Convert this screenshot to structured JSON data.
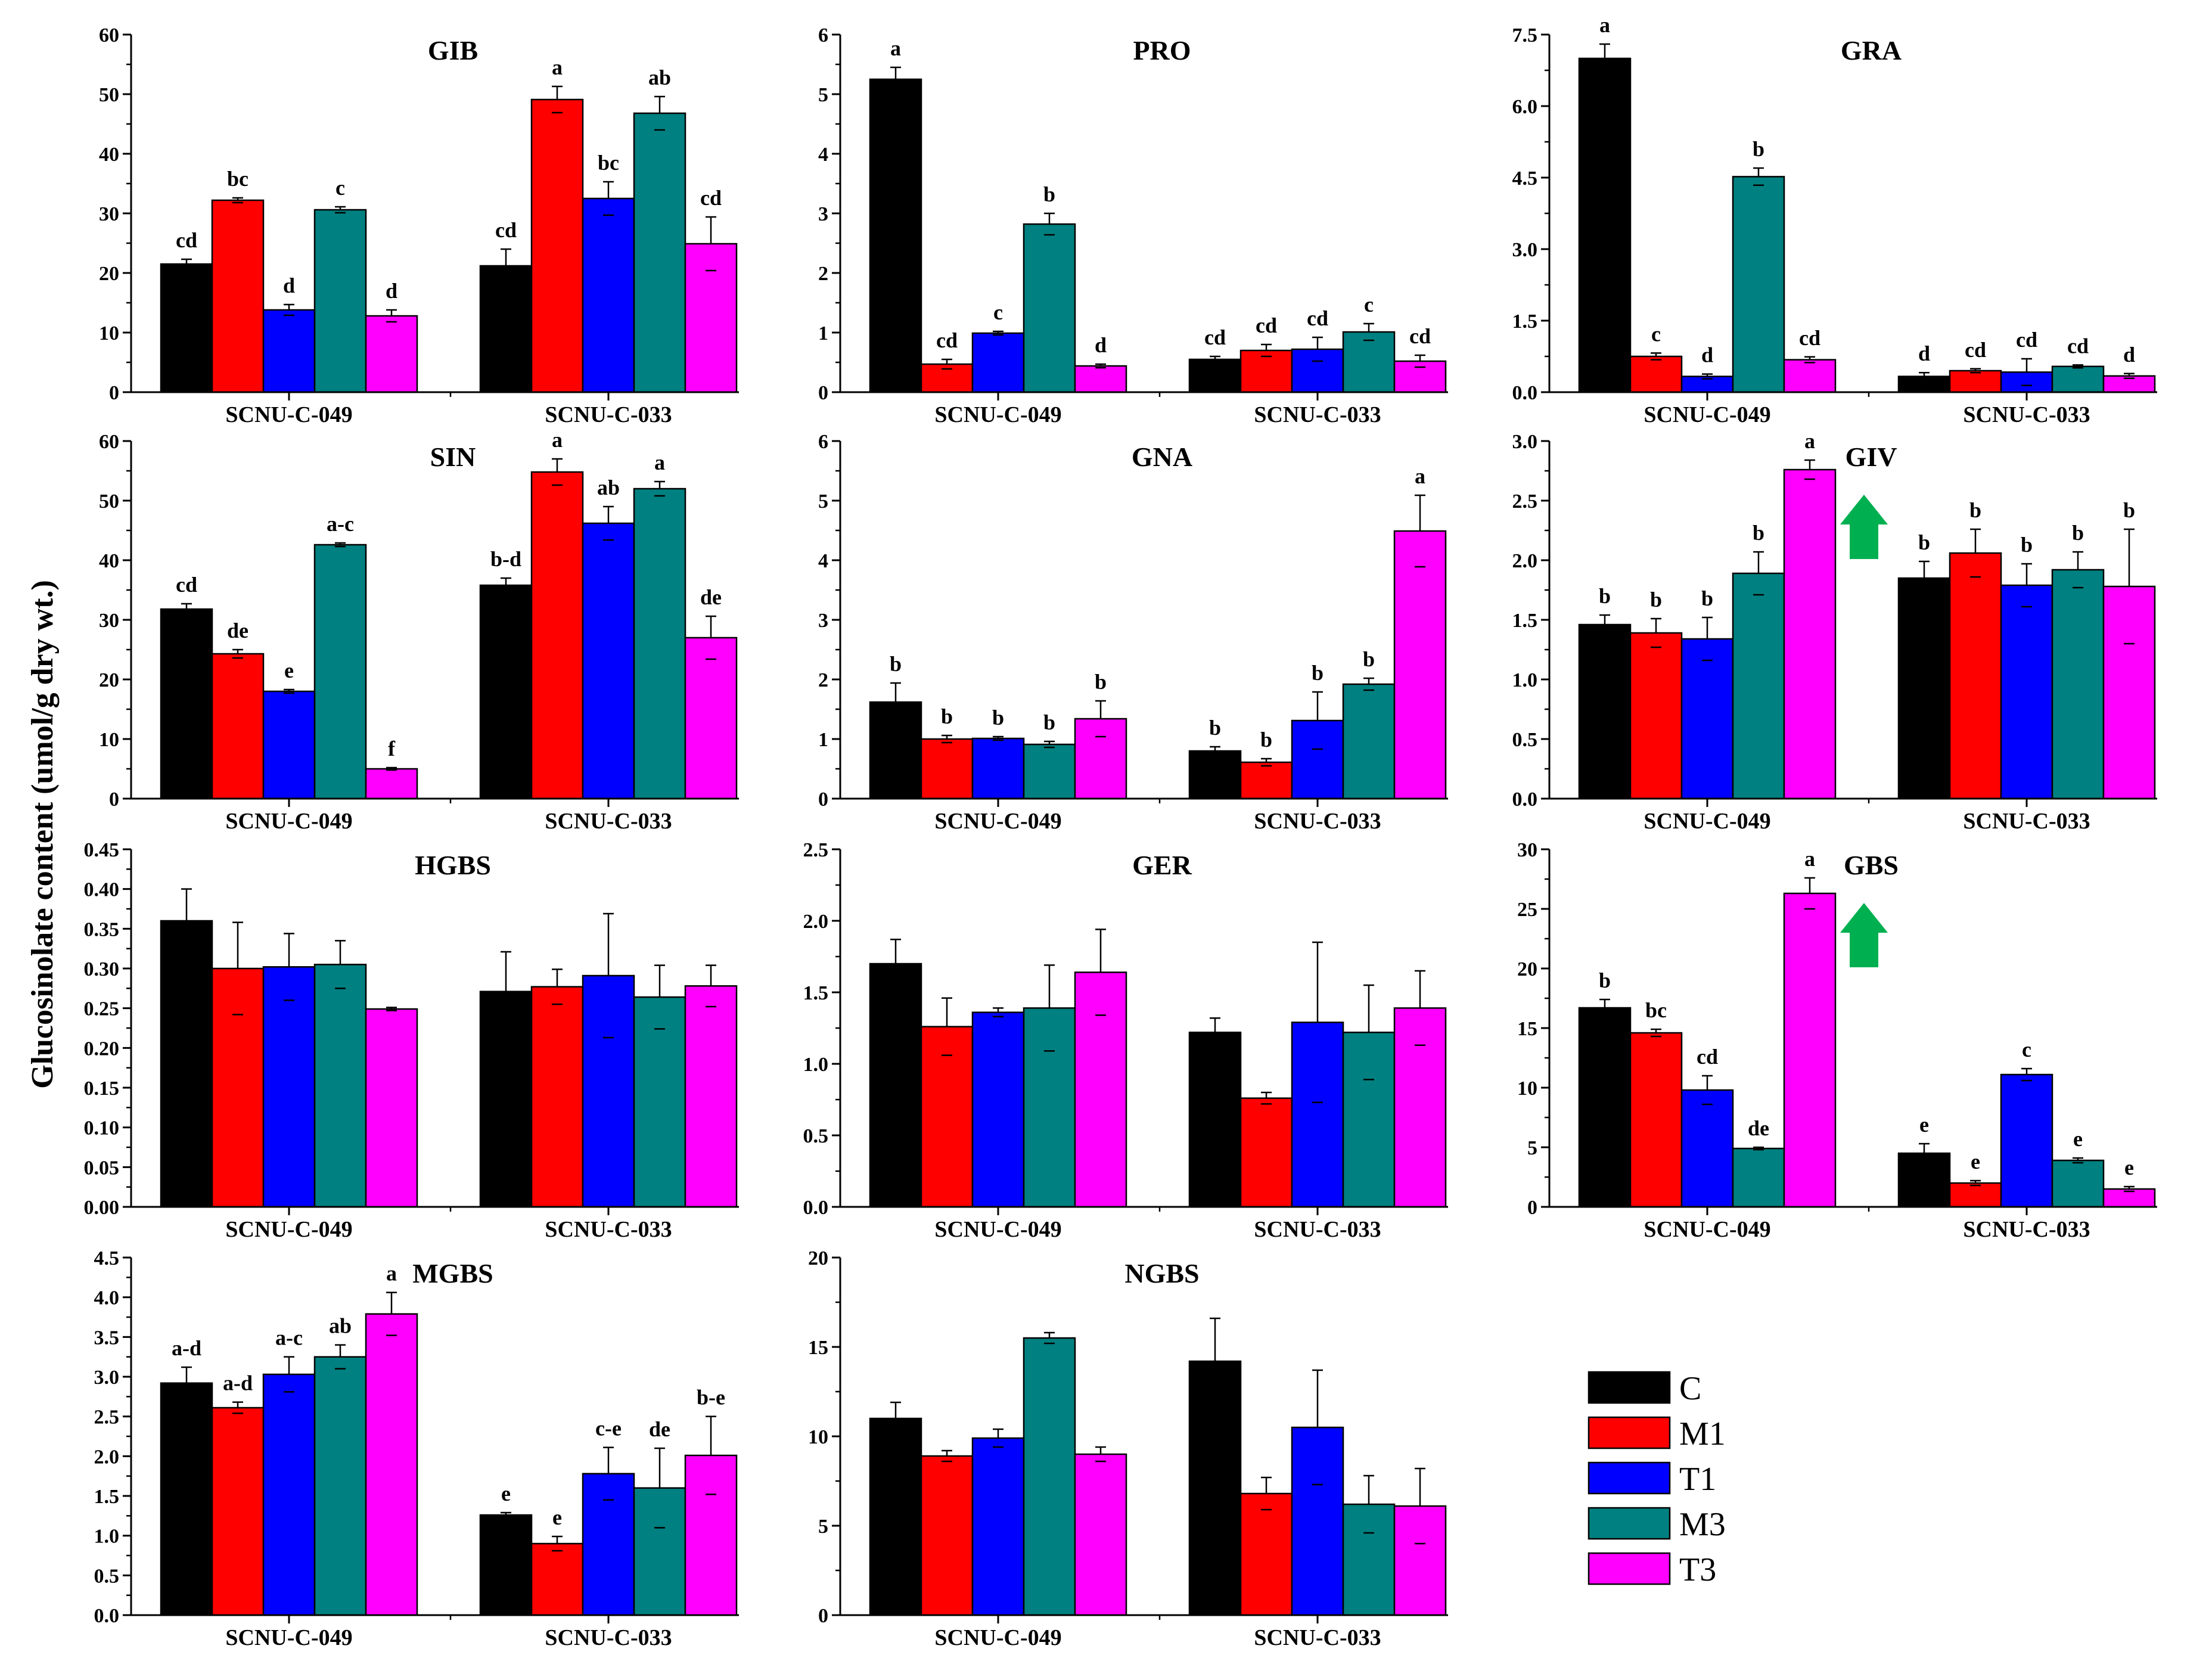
{
  "chart_data": {
    "type": "bar",
    "ylabel": "Glucosinolate content (umol/g dry wt.)",
    "groups": [
      "SCNU-C-049",
      "SCNU-C-033"
    ],
    "series_names": [
      "C",
      "M1",
      "T1",
      "M3",
      "T3"
    ],
    "colors": {
      "C": "#000000",
      "M1": "#ff0000",
      "T1": "#0000ff",
      "M3": "#008080",
      "T3": "#ff00ff",
      "arrow": "#00b050"
    },
    "legend": {
      "position": "bottom-right",
      "entries": [
        "C",
        "M1",
        "T1",
        "M3",
        "T3"
      ]
    },
    "panels": [
      {
        "title": "GIB",
        "ylim": [
          0,
          60
        ],
        "yticks": [
          "0",
          "10",
          "20",
          "30",
          "40",
          "50",
          "60"
        ],
        "values": [
          [
            21.5,
            32.2,
            13.8,
            30.6,
            12.8
          ],
          [
            21.2,
            49.1,
            32.5,
            46.8,
            24.9
          ]
        ],
        "errors": [
          [
            0.8,
            0.4,
            0.9,
            0.5,
            1.0
          ],
          [
            2.8,
            2.2,
            2.8,
            2.8,
            4.5
          ]
        ],
        "letters": [
          [
            "cd",
            "bc",
            "d",
            "c",
            "d"
          ],
          [
            "cd",
            "a",
            "bc",
            "ab",
            "cd"
          ]
        ]
      },
      {
        "title": "PRO",
        "ylim": [
          0,
          6
        ],
        "yticks": [
          "0",
          "1",
          "2",
          "3",
          "4",
          "5",
          "6"
        ],
        "values": [
          [
            5.25,
            0.47,
            0.99,
            2.82,
            0.44
          ],
          [
            0.55,
            0.7,
            0.72,
            1.01,
            0.52
          ]
        ],
        "errors": [
          [
            0.2,
            0.08,
            0.03,
            0.18,
            0.03
          ],
          [
            0.05,
            0.1,
            0.2,
            0.14,
            0.1
          ]
        ],
        "letters": [
          [
            "a",
            "cd",
            "c",
            "b",
            "d"
          ],
          [
            "cd",
            "cd",
            "cd",
            "c",
            "cd"
          ]
        ]
      },
      {
        "title": "GRA",
        "ylim": [
          0,
          7.5
        ],
        "yticks": [
          "0.0",
          "1.5",
          "3.0",
          "4.5",
          "6.0",
          "7.5"
        ],
        "values": [
          [
            7.0,
            0.75,
            0.33,
            4.52,
            0.68
          ],
          [
            0.33,
            0.45,
            0.42,
            0.54,
            0.34
          ]
        ],
        "errors": [
          [
            0.3,
            0.07,
            0.05,
            0.18,
            0.06
          ],
          [
            0.08,
            0.04,
            0.28,
            0.03,
            0.05
          ]
        ],
        "letters": [
          [
            "a",
            "c",
            "d",
            "b",
            "cd"
          ],
          [
            "d",
            "cd",
            "cd",
            "cd",
            "d"
          ]
        ]
      },
      {
        "title": "SIN",
        "ylim": [
          0,
          60
        ],
        "yticks": [
          "0",
          "10",
          "20",
          "30",
          "40",
          "50",
          "60"
        ],
        "values": [
          [
            31.8,
            24.3,
            18.0,
            42.6,
            5.0
          ],
          [
            35.8,
            54.8,
            46.2,
            52.0,
            27.0
          ]
        ],
        "errors": [
          [
            0.9,
            0.7,
            0.3,
            0.3,
            0.2
          ],
          [
            1.2,
            2.2,
            2.8,
            1.2,
            3.6
          ]
        ],
        "letters": [
          [
            "cd",
            "de",
            "e",
            "a-c",
            "f"
          ],
          [
            "b-d",
            "a",
            "ab",
            "a",
            "de"
          ]
        ]
      },
      {
        "title": "GNA",
        "ylim": [
          0,
          6
        ],
        "yticks": [
          "0",
          "1",
          "2",
          "3",
          "4",
          "5",
          "6"
        ],
        "values": [
          [
            1.62,
            1.0,
            1.01,
            0.91,
            1.34
          ],
          [
            0.8,
            0.61,
            1.31,
            1.92,
            4.49
          ]
        ],
        "errors": [
          [
            0.32,
            0.06,
            0.03,
            0.05,
            0.3
          ],
          [
            0.07,
            0.06,
            0.48,
            0.1,
            0.6
          ]
        ],
        "letters": [
          [
            "b",
            "b",
            "b",
            "b",
            "b"
          ],
          [
            "b",
            "b",
            "b",
            "b",
            "a"
          ]
        ]
      },
      {
        "title": "GIV",
        "ylim": [
          0,
          3.0
        ],
        "yticks": [
          "0.0",
          "0.5",
          "1.0",
          "1.5",
          "2.0",
          "2.5",
          "3.0"
        ],
        "values": [
          [
            1.46,
            1.39,
            1.34,
            1.89,
            2.76
          ],
          [
            1.85,
            2.06,
            1.79,
            1.92,
            1.78
          ]
        ],
        "errors": [
          [
            0.08,
            0.12,
            0.18,
            0.18,
            0.08
          ],
          [
            0.14,
            0.2,
            0.18,
            0.15,
            0.48
          ]
        ],
        "letters": [
          [
            "b",
            "b",
            "b",
            "b",
            "a"
          ],
          [
            "b",
            "b",
            "b",
            "b",
            "b"
          ]
        ],
        "arrow": true
      },
      {
        "title": "HGBS",
        "ylim": [
          0,
          0.45
        ],
        "yticks": [
          "0.00",
          "0.05",
          "0.10",
          "0.15",
          "0.20",
          "0.25",
          "0.30",
          "0.35",
          "0.40",
          "0.45"
        ],
        "values": [
          [
            0.36,
            0.3,
            0.302,
            0.305,
            0.249
          ],
          [
            0.271,
            0.277,
            0.291,
            0.264,
            0.278
          ]
        ],
        "errors": [
          [
            0.04,
            0.058,
            0.042,
            0.03,
            0.002
          ],
          [
            0.05,
            0.022,
            0.078,
            0.04,
            0.026
          ]
        ],
        "letters": [
          [
            "",
            "",
            "",
            "",
            ""
          ],
          [
            "",
            "",
            "",
            "",
            ""
          ]
        ]
      },
      {
        "title": "GER",
        "ylim": [
          0,
          2.5
        ],
        "yticks": [
          "0.0",
          "0.5",
          "1.0",
          "1.5",
          "2.0",
          "2.5"
        ],
        "values": [
          [
            1.7,
            1.26,
            1.36,
            1.39,
            1.64
          ],
          [
            1.22,
            0.76,
            1.29,
            1.22,
            1.39
          ]
        ],
        "errors": [
          [
            0.17,
            0.2,
            0.03,
            0.3,
            0.3
          ],
          [
            0.1,
            0.04,
            0.56,
            0.33,
            0.26
          ]
        ],
        "letters": [
          [
            "",
            "",
            "",
            "",
            ""
          ],
          [
            "",
            "",
            "",
            "",
            ""
          ]
        ]
      },
      {
        "title": "GBS",
        "ylim": [
          0,
          30
        ],
        "yticks": [
          "0",
          "5",
          "10",
          "15",
          "20",
          "25",
          "30"
        ],
        "values": [
          [
            16.7,
            14.6,
            9.8,
            4.9,
            26.3
          ],
          [
            4.5,
            2.0,
            11.1,
            3.9,
            1.5
          ]
        ],
        "errors": [
          [
            0.7,
            0.3,
            1.2,
            0.1,
            1.3
          ],
          [
            0.8,
            0.2,
            0.5,
            0.2,
            0.2
          ]
        ],
        "letters": [
          [
            "b",
            "bc",
            "cd",
            "de",
            "a"
          ],
          [
            "e",
            "e",
            "c",
            "e",
            "e"
          ]
        ],
        "arrow": true
      },
      {
        "title": "MGBS",
        "ylim": [
          0,
          4.5
        ],
        "yticks": [
          "0.0",
          "0.5",
          "1.0",
          "1.5",
          "2.0",
          "2.5",
          "3.0",
          "3.5",
          "4.0",
          "4.5"
        ],
        "values": [
          [
            2.92,
            2.61,
            3.03,
            3.25,
            3.79
          ],
          [
            1.26,
            0.9,
            1.78,
            1.6,
            2.01
          ]
        ],
        "errors": [
          [
            0.2,
            0.07,
            0.22,
            0.15,
            0.27
          ],
          [
            0.03,
            0.09,
            0.33,
            0.5,
            0.49
          ]
        ],
        "letters": [
          [
            "a-d",
            "a-d",
            "a-c",
            "ab",
            "a"
          ],
          [
            "e",
            "e",
            "c-e",
            "de",
            "b-e"
          ]
        ]
      },
      {
        "title": "NGBS",
        "ylim": [
          0,
          20
        ],
        "yticks": [
          "0",
          "5",
          "10",
          "15",
          "20"
        ],
        "values": [
          [
            11.0,
            8.9,
            9.9,
            15.5,
            9.0
          ],
          [
            14.2,
            6.8,
            10.5,
            6.2,
            6.1
          ]
        ],
        "errors": [
          [
            0.9,
            0.3,
            0.5,
            0.3,
            0.4
          ],
          [
            2.4,
            0.9,
            3.2,
            1.6,
            2.1
          ]
        ],
        "letters": [
          [
            "",
            "",
            "",
            "",
            ""
          ],
          [
            "",
            "",
            "",
            "",
            ""
          ]
        ]
      }
    ]
  }
}
